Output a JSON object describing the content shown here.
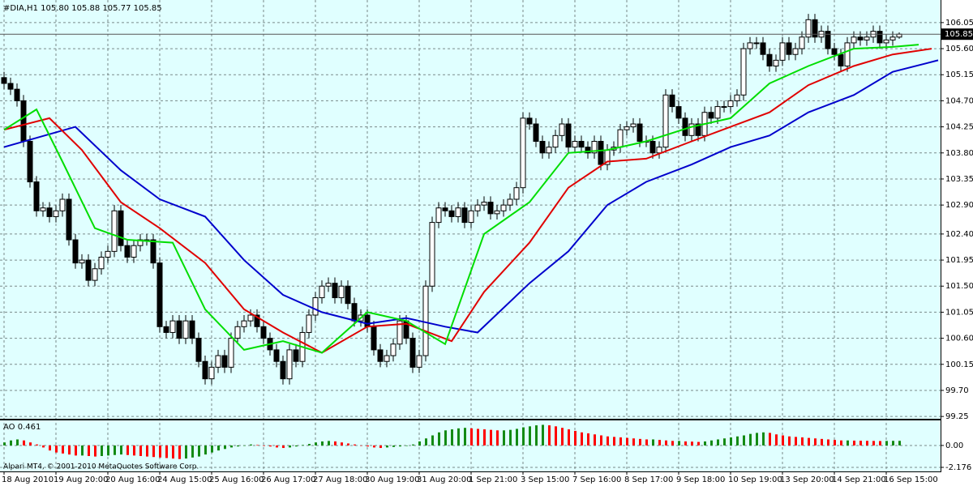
{
  "chart_data": [
    {
      "type": "candlestick",
      "header": "#DIA,H1  105.80 105.88 105.77 105.85",
      "categories": [
        "18 Aug 2010",
        null,
        null,
        null,
        null,
        null,
        null,
        null,
        "19 Aug 20:00",
        null,
        null,
        null,
        null,
        null,
        null,
        null,
        "20 Aug 16:00",
        null,
        null,
        null,
        null,
        null,
        null,
        null,
        "24 Aug 15:00",
        null,
        null,
        null,
        null,
        null,
        null,
        null,
        "25 Aug 16:00",
        null,
        null,
        null,
        null,
        null,
        null,
        null,
        "26 Aug 17:00",
        null,
        null,
        null,
        null,
        null,
        null,
        null,
        "27 Aug 18:00",
        null,
        null,
        null,
        null,
        null,
        null,
        null,
        "30 Aug 19:00",
        null,
        null,
        null,
        null,
        null,
        null,
        null,
        "31 Aug 20:00",
        null,
        null,
        null,
        null,
        null,
        null,
        null,
        "1 Sep 21:00",
        null,
        null,
        null,
        null,
        null,
        null,
        null,
        "3 Sep 15:00",
        null,
        null,
        null,
        null,
        null,
        null,
        null,
        "7 Sep 16:00",
        null,
        null,
        null,
        null,
        null,
        null,
        null,
        "8 Sep 17:00",
        null,
        null,
        null,
        null,
        null,
        null,
        null,
        "9 Sep 18:00",
        null,
        null,
        null,
        null,
        null,
        null,
        null,
        "10 Sep 19:00",
        null,
        null,
        null,
        null,
        null,
        null,
        null,
        "13 Sep 20:00",
        null,
        null,
        null,
        null,
        null,
        null,
        null,
        "14 Sep 21:00",
        null,
        null,
        null,
        null,
        null,
        null,
        null,
        "16 Sep 15:00",
        null,
        null
      ],
      "open": [
        105.1,
        105.0,
        104.9,
        104.7,
        104.0,
        103.3,
        102.8,
        102.85,
        102.7,
        102.8,
        103.0,
        102.3,
        101.9,
        101.95,
        101.6,
        101.8,
        102.0,
        102.1,
        102.8,
        102.2,
        102.0,
        102.2,
        102.3,
        102.3,
        101.9,
        100.8,
        100.7,
        100.9,
        100.6,
        100.9,
        100.6,
        100.2,
        99.9,
        100.1,
        100.3,
        100.1,
        100.6,
        100.8,
        100.9,
        101.0,
        100.8,
        100.6,
        100.4,
        100.2,
        99.9,
        100.4,
        100.2,
        100.7,
        101.0,
        101.3,
        101.5,
        101.55,
        101.3,
        101.5,
        101.2,
        100.9,
        101.0,
        100.8,
        100.4,
        100.2,
        100.3,
        100.5,
        100.9,
        100.6,
        100.1,
        100.3,
        101.5,
        102.6,
        102.85,
        102.8,
        102.7,
        102.85,
        102.6,
        102.8,
        102.9,
        102.95,
        102.75,
        102.8,
        102.9,
        103.0,
        103.2,
        104.4,
        104.3,
        104.0,
        103.8,
        103.9,
        104.1,
        104.3,
        103.9,
        104.0,
        103.9,
        103.8,
        104.0,
        103.6,
        103.85,
        103.9,
        104.2,
        104.25,
        104.3,
        104.0,
        104.0,
        103.8,
        103.9,
        104.8,
        104.6,
        104.4,
        104.1,
        104.3,
        104.1,
        104.5,
        104.4,
        104.6,
        104.6,
        104.7,
        104.8,
        105.6,
        105.7,
        105.7,
        105.5,
        105.3,
        105.4,
        105.7,
        105.5,
        105.6,
        105.8,
        106.1,
        105.8,
        105.9,
        105.6,
        105.5,
        105.3,
        105.7,
        105.8,
        105.75,
        105.8,
        105.9,
        105.7,
        105.75,
        105.8
      ],
      "high": [
        105.2,
        105.1,
        105.0,
        104.8,
        104.1,
        103.4,
        102.95,
        102.95,
        102.9,
        103.1,
        103.1,
        102.4,
        102.05,
        102.05,
        101.9,
        102.1,
        102.2,
        102.9,
        102.9,
        102.3,
        102.3,
        102.4,
        102.4,
        102.4,
        102.0,
        100.9,
        101.0,
        101.0,
        101.0,
        101.0,
        100.7,
        100.3,
        100.2,
        100.4,
        100.4,
        100.7,
        100.9,
        101.0,
        101.1,
        101.1,
        100.9,
        100.7,
        100.5,
        100.3,
        100.5,
        100.5,
        100.8,
        101.1,
        101.4,
        101.6,
        101.65,
        101.65,
        101.6,
        101.6,
        101.3,
        101.1,
        101.1,
        100.9,
        100.5,
        100.4,
        100.6,
        101.0,
        101.0,
        100.7,
        100.4,
        101.6,
        102.7,
        102.95,
        102.95,
        102.9,
        102.95,
        102.95,
        102.9,
        103.0,
        103.05,
        103.05,
        102.9,
        103.0,
        103.1,
        103.3,
        104.5,
        104.5,
        104.4,
        104.1,
        104.0,
        104.2,
        104.4,
        104.4,
        104.1,
        104.1,
        104.0,
        104.1,
        104.1,
        103.95,
        104.0,
        104.3,
        104.35,
        104.4,
        104.4,
        104.1,
        104.1,
        104.0,
        104.9,
        104.9,
        104.7,
        104.5,
        104.4,
        104.4,
        104.6,
        104.6,
        104.7,
        104.7,
        104.8,
        104.9,
        105.7,
        105.8,
        105.8,
        105.8,
        105.6,
        105.5,
        105.8,
        105.8,
        105.7,
        105.9,
        106.2,
        106.2,
        106.0,
        106.0,
        105.7,
        105.6,
        105.8,
        105.9,
        105.9,
        105.9,
        106.0,
        106.0,
        105.85,
        105.9,
        105.88
      ],
      "low": [
        104.9,
        104.8,
        104.6,
        103.9,
        103.2,
        102.7,
        102.7,
        102.6,
        102.6,
        102.7,
        102.2,
        101.8,
        101.8,
        101.5,
        101.5,
        101.7,
        101.9,
        102.0,
        102.1,
        101.9,
        101.9,
        102.1,
        102.2,
        101.8,
        100.7,
        100.6,
        100.6,
        100.5,
        100.5,
        100.5,
        100.1,
        99.8,
        99.8,
        100.0,
        100.0,
        100.0,
        100.5,
        100.7,
        100.8,
        100.7,
        100.5,
        100.3,
        100.1,
        99.8,
        99.8,
        100.1,
        100.1,
        100.6,
        100.9,
        101.2,
        101.4,
        101.2,
        101.2,
        101.1,
        100.8,
        100.8,
        100.7,
        100.3,
        100.1,
        100.1,
        100.2,
        100.4,
        100.5,
        100.0,
        100.0,
        100.2,
        101.4,
        102.5,
        102.7,
        102.6,
        102.6,
        102.5,
        102.5,
        102.7,
        102.8,
        102.65,
        102.65,
        102.7,
        102.8,
        102.9,
        103.1,
        104.2,
        103.9,
        103.7,
        103.7,
        103.8,
        104.0,
        103.8,
        103.8,
        103.8,
        103.7,
        103.7,
        103.5,
        103.5,
        103.75,
        103.8,
        104.1,
        104.15,
        103.9,
        103.9,
        103.7,
        103.7,
        103.8,
        104.5,
        104.3,
        104.0,
        104.0,
        104.0,
        104.0,
        104.3,
        104.3,
        104.5,
        104.5,
        104.6,
        104.7,
        105.5,
        105.6,
        105.4,
        105.2,
        105.2,
        105.3,
        105.4,
        105.4,
        105.5,
        105.7,
        105.7,
        105.7,
        105.5,
        105.4,
        105.2,
        105.2,
        105.6,
        105.65,
        105.65,
        105.7,
        105.6,
        105.6,
        105.65,
        105.77
      ],
      "close": [
        105.0,
        104.9,
        104.7,
        104.0,
        103.3,
        102.8,
        102.85,
        102.7,
        102.8,
        103.0,
        102.3,
        101.9,
        101.95,
        101.6,
        101.8,
        102.0,
        102.1,
        102.8,
        102.2,
        102.0,
        102.2,
        102.3,
        102.3,
        101.9,
        100.8,
        100.7,
        100.9,
        100.6,
        100.9,
        100.6,
        100.2,
        99.9,
        100.1,
        100.3,
        100.1,
        100.6,
        100.8,
        100.9,
        101.0,
        100.8,
        100.6,
        100.4,
        100.2,
        99.9,
        100.4,
        100.2,
        100.7,
        101.0,
        101.3,
        101.5,
        101.55,
        101.3,
        101.5,
        101.2,
        100.9,
        101.0,
        100.8,
        100.4,
        100.2,
        100.3,
        100.5,
        100.9,
        100.6,
        100.1,
        100.3,
        101.5,
        102.6,
        102.85,
        102.8,
        102.7,
        102.85,
        102.6,
        102.8,
        102.9,
        102.95,
        102.75,
        102.8,
        102.9,
        103.0,
        103.2,
        104.4,
        104.3,
        104.0,
        103.8,
        103.9,
        104.1,
        104.3,
        103.9,
        104.0,
        103.9,
        103.8,
        104.0,
        103.6,
        103.85,
        103.9,
        104.2,
        104.25,
        104.3,
        104.0,
        104.0,
        103.8,
        103.9,
        104.8,
        104.6,
        104.4,
        104.1,
        104.3,
        104.1,
        104.5,
        104.4,
        104.6,
        104.6,
        104.7,
        104.8,
        105.6,
        105.7,
        105.7,
        105.5,
        105.3,
        105.4,
        105.7,
        105.5,
        105.6,
        105.8,
        106.1,
        105.8,
        105.9,
        105.6,
        105.5,
        105.3,
        105.7,
        105.8,
        105.75,
        105.8,
        105.9,
        105.7,
        105.75,
        105.8,
        105.85
      ],
      "up_color": "#ffffff",
      "down_color": "#000000",
      "background": "#e0ffff",
      "lines": [
        {
          "color": "#0000cc",
          "x": [
            0,
            11,
            18,
            24,
            31,
            37,
            43,
            49,
            56,
            62,
            68,
            73,
            81,
            87,
            93,
            99,
            106,
            112,
            118,
            124,
            131,
            137,
            144
          ],
          "values": [
            103.9,
            104.25,
            103.5,
            103.0,
            102.7,
            101.95,
            101.35,
            101.05,
            100.85,
            100.95,
            100.8,
            100.7,
            101.55,
            102.1,
            102.9,
            103.3,
            103.6,
            103.9,
            104.1,
            104.5,
            104.8,
            105.2,
            105.4
          ]
        },
        {
          "color": "#e00000",
          "x": [
            0,
            7,
            12,
            18,
            24,
            31,
            37,
            43,
            49,
            56,
            62,
            69,
            74,
            81,
            87,
            93,
            99,
            106,
            112,
            118,
            124,
            131,
            137,
            143
          ],
          "values": [
            104.2,
            104.4,
            103.85,
            102.95,
            102.5,
            101.9,
            101.1,
            100.7,
            100.35,
            100.8,
            100.85,
            100.55,
            101.4,
            102.25,
            103.2,
            103.65,
            103.7,
            104.0,
            104.25,
            104.5,
            104.97,
            105.3,
            105.5,
            105.6
          ]
        },
        {
          "color": "#00dd00",
          "x": [
            0,
            5,
            9,
            14,
            19,
            26,
            31,
            37,
            43,
            49,
            56,
            62,
            68,
            74,
            81,
            87,
            93,
            99,
            106,
            112,
            118,
            124,
            131,
            137,
            141
          ],
          "values": [
            104.2,
            104.55,
            103.65,
            102.5,
            102.3,
            102.25,
            101.1,
            100.4,
            100.55,
            100.35,
            101.05,
            100.9,
            100.5,
            102.4,
            102.95,
            103.8,
            103.85,
            104.0,
            104.25,
            104.4,
            105.0,
            105.3,
            105.6,
            105.63,
            105.67
          ]
        }
      ],
      "ylim": [
        99.21,
        106.44
      ],
      "yticks": [
        106.05,
        {
          "value": 105.6,
          "label": "105.60"
        },
        105.15,
        {
          "value": 104.7,
          "label": "104.70"
        },
        104.25,
        {
          "value": 103.8,
          "label": "103.80"
        },
        103.35,
        {
          "value": 102.9,
          "label": "102.90"
        },
        {
          "value": 102.4,
          "label": "102.40"
        },
        101.95,
        {
          "value": 101.5,
          "label": "101.50"
        },
        101.05,
        {
          "value": 100.6,
          "label": "100.60"
        },
        100.15,
        {
          "value": 99.7,
          "label": "99.70"
        },
        99.25
      ],
      "grid": true
    },
    {
      "type": "bar",
      "title": "AO 0.461",
      "values": [
        0.3,
        0.5,
        0.6,
        0.5,
        0.3,
        0.1,
        -0.2,
        -0.5,
        -0.7,
        -0.8,
        -0.9,
        -1.0,
        -1.0,
        -1.05,
        -1.1,
        -1.05,
        -1.0,
        -0.95,
        -0.9,
        -0.95,
        -1.0,
        -1.05,
        -1.1,
        -1.15,
        -1.2,
        -1.25,
        -1.3,
        -1.35,
        -1.3,
        -1.2,
        -1.1,
        -0.9,
        -0.7,
        -0.5,
        -0.35,
        -0.2,
        -0.1,
        0.0,
        0.1,
        0.05,
        -0.05,
        -0.1,
        -0.2,
        -0.25,
        -0.2,
        -0.1,
        0.05,
        0.15,
        0.3,
        0.4,
        0.45,
        0.4,
        0.3,
        0.2,
        0.1,
        0.0,
        -0.1,
        -0.2,
        -0.25,
        -0.2,
        -0.15,
        -0.1,
        -0.05,
        0.1,
        0.4,
        0.7,
        1.0,
        1.3,
        1.5,
        1.6,
        1.7,
        1.75,
        1.7,
        1.65,
        1.6,
        1.55,
        1.5,
        1.5,
        1.55,
        1.65,
        1.8,
        1.9,
        2.0,
        2.05,
        2.0,
        1.9,
        1.75,
        1.6,
        1.45,
        1.3,
        1.2,
        1.1,
        1.0,
        0.9,
        0.85,
        0.8,
        0.75,
        0.7,
        0.65,
        0.6,
        0.6,
        0.55,
        0.5,
        0.45,
        0.45,
        0.4,
        0.38,
        0.35,
        0.4,
        0.5,
        0.6,
        0.7,
        0.8,
        0.9,
        1.0,
        1.15,
        1.25,
        1.3,
        1.25,
        1.1,
        1.0,
        0.9,
        0.85,
        0.8,
        0.75,
        0.7,
        0.65,
        0.6,
        0.55,
        0.5,
        0.5,
        0.48,
        0.47,
        0.46,
        0.45,
        0.44,
        0.45,
        0.46,
        0.461
      ],
      "up_color": "#138a13",
      "down_color": "#ff0000",
      "ylim": [
        -2.58,
        2.49
      ],
      "yticks": [
        {
          "value": 0,
          "label": "0.00"
        },
        -2.176
      ],
      "grid": true
    }
  ],
  "footer": "Alpari MT4, © 2001-2010 MetaQuotes Software Corp."
}
